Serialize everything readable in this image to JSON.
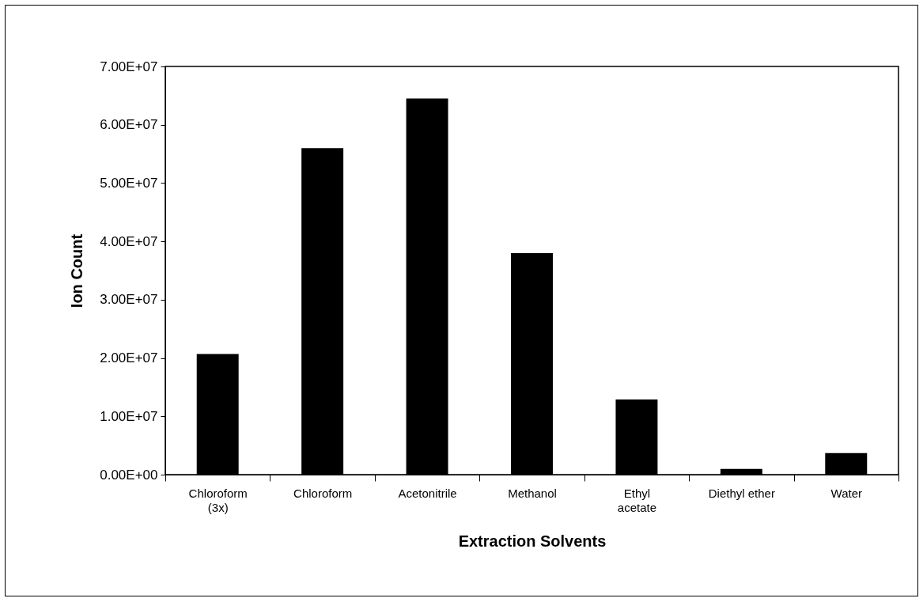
{
  "chart_data": {
    "type": "bar",
    "xlabel": "Extraction Solvents",
    "ylabel": "Ion Count",
    "categories": [
      "Chloroform\n(3x)",
      "Chloroform",
      "Acetonitrile",
      "Methanol",
      "Ethyl\nacetate",
      "Diethyl ether",
      "Water"
    ],
    "values": [
      20700000,
      56000000,
      64500000,
      38000000,
      12900000,
      1000000,
      3700000
    ],
    "color": "#000000",
    "ylim": [
      0,
      70000000
    ],
    "yticks": [
      {
        "value": 0,
        "label": "0.00E+00"
      },
      {
        "value": 10000000,
        "label": "1.00E+07"
      },
      {
        "value": 20000000,
        "label": "2.00E+07"
      },
      {
        "value": 30000000,
        "label": "3.00E+07"
      },
      {
        "value": 40000000,
        "label": "4.00E+07"
      },
      {
        "value": 50000000,
        "label": "5.00E+07"
      },
      {
        "value": 60000000,
        "label": "6.00E+07"
      },
      {
        "value": 70000000,
        "label": "7.00E+07"
      }
    ],
    "grid": false
  }
}
